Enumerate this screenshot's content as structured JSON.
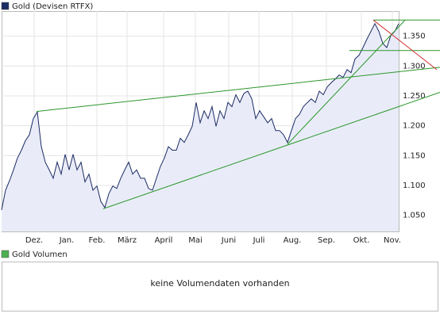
{
  "chart_data": [
    {
      "type": "line",
      "series": [
        {
          "name": "Gold (Devisen RTFX)",
          "color": "#1c2c64",
          "fill": "#e9ecf8",
          "values": [
            1.059,
            1.092,
            1.108,
            1.126,
            1.146,
            1.159,
            1.175,
            1.185,
            1.212,
            1.223,
            1.165,
            1.139,
            1.126,
            1.112,
            1.139,
            1.119,
            1.152,
            1.126,
            1.152,
            1.126,
            1.139,
            1.106,
            1.119,
            1.092,
            1.099,
            1.073,
            1.063,
            1.086,
            1.099,
            1.095,
            1.112,
            1.126,
            1.139,
            1.119,
            1.126,
            1.112,
            1.112,
            1.095,
            1.092,
            1.112,
            1.132,
            1.146,
            1.165,
            1.159,
            1.159,
            1.179,
            1.172,
            1.185,
            1.199,
            1.239,
            1.205,
            1.225,
            1.212,
            1.232,
            1.199,
            1.225,
            1.212,
            1.239,
            1.232,
            1.252,
            1.239,
            1.254,
            1.258,
            1.245,
            1.212,
            1.225,
            1.215,
            1.205,
            1.212,
            1.192,
            1.192,
            1.185,
            1.172,
            1.192,
            1.212,
            1.219,
            1.232,
            1.239,
            1.245,
            1.239,
            1.258,
            1.252,
            1.265,
            1.272,
            1.278,
            1.285,
            1.281,
            1.294,
            1.289,
            1.312,
            1.318,
            1.331,
            1.345,
            1.358,
            1.371,
            1.358,
            1.338,
            1.331,
            1.351,
            1.358,
            1.371
          ]
        }
      ],
      "xticks": [
        {
          "value": 8.2,
          "label": "Dez."
        },
        {
          "value": 16.4,
          "label": "Jan."
        },
        {
          "value": 24,
          "label": "Feb."
        },
        {
          "value": 31.6,
          "label": "März"
        },
        {
          "value": 40.8,
          "label": "April"
        },
        {
          "value": 48.8,
          "label": "Mai"
        },
        {
          "value": 57.2,
          "label": "Juni"
        },
        {
          "value": 64.8,
          "label": "Juli"
        },
        {
          "value": 73.2,
          "label": "Aug."
        },
        {
          "value": 81.8,
          "label": "Sep."
        },
        {
          "value": 90.6,
          "label": "Okt."
        },
        {
          "value": 98.4,
          "label": "Nov."
        }
      ],
      "xlim": [
        0,
        100
      ],
      "ylim": [
        1.023,
        1.392
      ],
      "yticks": [
        {
          "value": 1.05,
          "label": "1.050"
        },
        {
          "value": 1.1,
          "label": "1.100"
        },
        {
          "value": 1.15,
          "label": "1.150"
        },
        {
          "value": 1.2,
          "label": "1.200"
        },
        {
          "value": 1.25,
          "label": "1.250"
        },
        {
          "value": 1.3,
          "label": "1.300"
        },
        {
          "value": 1.35,
          "label": "1.350"
        }
      ],
      "grid": true,
      "trendlines": [
        {
          "color": "#2a962a",
          "points": [
            [
              8.8,
              1.224
            ],
            [
              110.4,
              1.298
            ]
          ]
        },
        {
          "color": "#2a962a",
          "points": [
            [
              25.6,
              1.061
            ],
            [
              110.4,
              1.256
            ]
          ]
        },
        {
          "color": "#2a962a",
          "points": [
            [
              72,
              1.169
            ],
            [
              101.6,
              1.377
            ]
          ]
        },
        {
          "color": "#2a962a",
          "points": [
            [
              93.6,
              1.377
            ],
            [
              110.4,
              1.377
            ]
          ]
        },
        {
          "color": "#2a962a",
          "points": [
            [
              87.6,
              1.326
            ],
            [
              110.4,
              1.326
            ]
          ]
        },
        {
          "color": "#d03030",
          "points": [
            [
              93.6,
              1.377
            ],
            [
              109.6,
              1.294
            ]
          ]
        }
      ]
    },
    {
      "type": "bar",
      "series": [
        {
          "name": "Gold Volumen",
          "color": "#4caf50"
        }
      ],
      "message": "keine Volumendaten vorhanden"
    }
  ]
}
